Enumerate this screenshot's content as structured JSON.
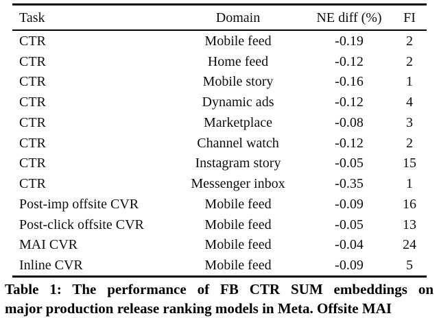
{
  "table": {
    "columns": [
      {
        "key": "task",
        "label": "Task"
      },
      {
        "key": "domain",
        "label": "Domain"
      },
      {
        "key": "ne-diff",
        "label": "NE diff (%)"
      },
      {
        "key": "fi",
        "label": "FI"
      }
    ],
    "rows": [
      [
        "CTR",
        "Mobile feed",
        "-0.19",
        "2"
      ],
      [
        "CTR",
        "Home feed",
        "-0.12",
        "2"
      ],
      [
        "CTR",
        "Mobile story",
        "-0.16",
        "1"
      ],
      [
        "CTR",
        "Dynamic ads",
        "-0.12",
        "4"
      ],
      [
        "CTR",
        "Marketplace",
        "-0.08",
        "3"
      ],
      [
        "CTR",
        "Channel watch",
        "-0.12",
        "2"
      ],
      [
        "CTR",
        "Instagram story",
        "-0.05",
        "15"
      ],
      [
        "CTR",
        "Messenger inbox",
        "-0.35",
        "1"
      ],
      [
        "Post-imp offsite CVR",
        "Mobile feed",
        "-0.09",
        "16"
      ],
      [
        "Post-click offsite CVR",
        "Mobile feed",
        "-0.05",
        "13"
      ],
      [
        "MAI CVR",
        "Mobile feed",
        "-0.04",
        "24"
      ],
      [
        "Inline CVR",
        "Mobile feed",
        "-0.09",
        "5"
      ]
    ]
  },
  "caption": {
    "line1": "Table 1: The performance of FB CTR SUM embeddings on",
    "line2": "major production release ranking models in Meta. Offsite MAI"
  }
}
